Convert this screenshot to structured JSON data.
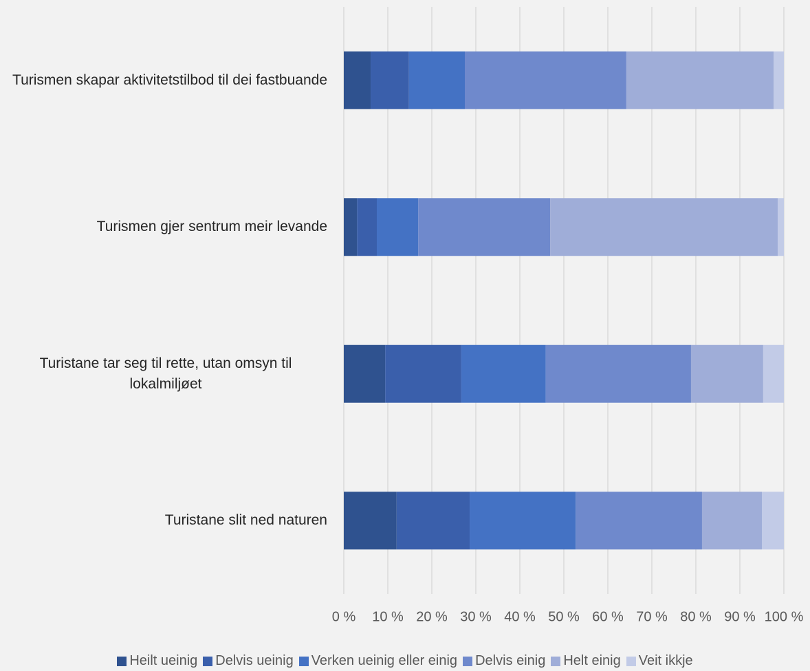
{
  "chart_data": {
    "type": "stacked-bar-horizontal",
    "categories": [
      "Turismen skapar aktivitetstilbod til dei fastbuande",
      "Turismen gjer sentrum meir levande",
      "Turistane tar seg til rette, utan omsyn til lokalmiljøet",
      "Turistane slit ned naturen"
    ],
    "series": [
      {
        "name": "Heilt ueinig",
        "color": "#2f528f",
        "values": [
          6.1,
          3.0,
          9.4,
          12.0
        ]
      },
      {
        "name": "Delvis ueinig",
        "color": "#3a5fab",
        "values": [
          8.7,
          4.5,
          17.3,
          16.6
        ]
      },
      {
        "name": "Verken ueinig eller einig",
        "color": "#4472c4",
        "values": [
          12.7,
          9.4,
          19.2,
          24.1
        ]
      },
      {
        "name": "Delvis einig",
        "color": "#6f89cc",
        "values": [
          36.7,
          30.0,
          33.0,
          28.7
        ]
      },
      {
        "name": "Helt einig",
        "color": "#9fadd8",
        "values": [
          33.5,
          51.7,
          16.4,
          13.6
        ]
      },
      {
        "name": "Veit ikkje",
        "color": "#c2cbe7",
        "values": [
          2.3,
          1.4,
          4.7,
          5.0
        ]
      }
    ],
    "xlim": [
      0,
      100
    ],
    "xticks": [
      {
        "value": 0,
        "label": "0 %"
      },
      {
        "value": 10,
        "label": "10 %"
      },
      {
        "value": 20,
        "label": "20 %"
      },
      {
        "value": 30,
        "label": "30 %"
      },
      {
        "value": 40,
        "label": "40 %"
      },
      {
        "value": 50,
        "label": "50 %"
      },
      {
        "value": 60,
        "label": "60 %"
      },
      {
        "value": 70,
        "label": "70 %"
      },
      {
        "value": 80,
        "label": "80 %"
      },
      {
        "value": 90,
        "label": "90 %"
      },
      {
        "value": 100,
        "label": "100 %"
      }
    ],
    "grid": true,
    "legend": "bottom"
  }
}
